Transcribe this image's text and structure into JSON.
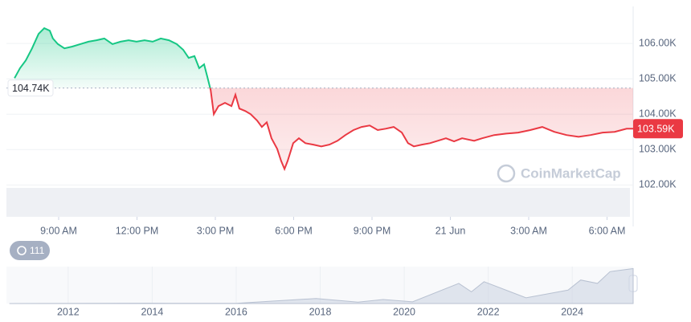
{
  "chart_data": [
    {
      "type": "line",
      "color_up": "#16c784",
      "color_down": "#ea3943",
      "x": [
        7.31,
        7.52,
        7.74,
        7.98,
        8.23,
        8.45,
        8.66,
        8.78,
        8.97,
        9.22,
        9.52,
        9.83,
        10.14,
        10.45,
        10.75,
        11.06,
        11.37,
        11.68,
        11.98,
        12.29,
        12.6,
        12.91,
        13.22,
        13.52,
        13.77,
        13.98,
        14.2,
        14.38,
        14.57,
        14.69,
        14.82,
        14.94,
        15.12,
        15.37,
        15.62,
        15.77,
        15.92,
        16.14,
        16.35,
        16.6,
        16.78,
        16.97,
        17.15,
        17.37,
        17.52,
        17.65,
        17.77,
        17.98,
        18.2,
        18.45,
        18.75,
        19.06,
        19.37,
        19.68,
        19.98,
        20.29,
        20.6,
        20.91,
        21.22,
        21.52,
        21.83,
        22.14,
        22.38,
        22.6,
        22.91,
        23.22,
        23.52,
        23.83,
        24.14,
        24.45,
        24.91,
        25.22,
        25.68,
        26.14,
        26.6,
        27.06,
        27.52,
        27.98,
        28.45,
        28.91,
        29.37,
        29.83,
        30.29,
        30.75,
        31
      ],
      "series": [
        {
          "values": [
            105020,
            105300,
            105520,
            105860,
            106270,
            106430,
            106360,
            106140,
            105980,
            105860,
            105910,
            105980,
            106050,
            106090,
            106140,
            105980,
            106050,
            106090,
            106050,
            106090,
            106050,
            106140,
            106090,
            105980,
            105820,
            105590,
            105640,
            105300,
            105410,
            105070,
            104680,
            104000,
            104230,
            104320,
            104230,
            104550,
            104160,
            104090,
            104000,
            103820,
            103640,
            103770,
            103320,
            103020,
            102680,
            102450,
            102680,
            103180,
            103320,
            103180,
            103140,
            103090,
            103140,
            103250,
            103410,
            103550,
            103640,
            103680,
            103550,
            103590,
            103640,
            103480,
            103180,
            103090,
            103140,
            103180,
            103250,
            103320,
            103230,
            103320,
            103250,
            103320,
            103410,
            103450,
            103480,
            103550,
            103640,
            103500,
            103410,
            103360,
            103410,
            103480,
            103500,
            103590,
            103590
          ]
        }
      ],
      "baseline": {
        "value": 104740,
        "label": "104.74K"
      },
      "last": {
        "value": 103590,
        "label": "103.59K"
      },
      "xlim": [
        7,
        31
      ],
      "xticks": [
        {
          "value": 9,
          "label": "9:00 AM"
        },
        {
          "value": 12,
          "label": "12:00 PM"
        },
        {
          "value": 15,
          "label": "3:00 PM"
        },
        {
          "value": 18,
          "label": "6:00 PM"
        },
        {
          "value": 21,
          "label": "9:00 PM"
        },
        {
          "value": 24,
          "label": "21 Jun"
        },
        {
          "value": 27,
          "label": "3:00 AM"
        },
        {
          "value": 30,
          "label": "6:00 AM"
        }
      ],
      "ylim": [
        101100,
        107000
      ],
      "yticks": [
        {
          "value": 102000,
          "label": "102.00K"
        },
        {
          "value": 103000,
          "label": "103.00K"
        },
        {
          "value": 104000,
          "label": "104.00K"
        },
        {
          "value": 105000,
          "label": "105.00K"
        },
        {
          "value": 106000,
          "label": "106.00K"
        }
      ],
      "grid": true,
      "watermark": "CoinMarketCap"
    },
    {
      "type": "area",
      "color": "#cfd6e4",
      "badge": "111",
      "x": [
        2010.6,
        2013.9,
        2014.5,
        2016,
        2017.9,
        2018.9,
        2019.5,
        2020.2,
        2021.3,
        2021.6,
        2021.9,
        2022.9,
        2023.9,
        2024.2,
        2024.6,
        2024.9,
        2025.45
      ],
      "series": [
        {
          "values": [
            0,
            1000,
            500,
            400,
            15000,
            4000,
            12000,
            5000,
            60000,
            35000,
            65000,
            17000,
            40000,
            70000,
            60000,
            95000,
            104000
          ]
        }
      ],
      "xlim": [
        2010.53,
        2025.45
      ],
      "ylim": [
        0,
        110000
      ],
      "xticks": [
        2012,
        2014,
        2016,
        2018,
        2020,
        2022,
        2024
      ]
    }
  ]
}
